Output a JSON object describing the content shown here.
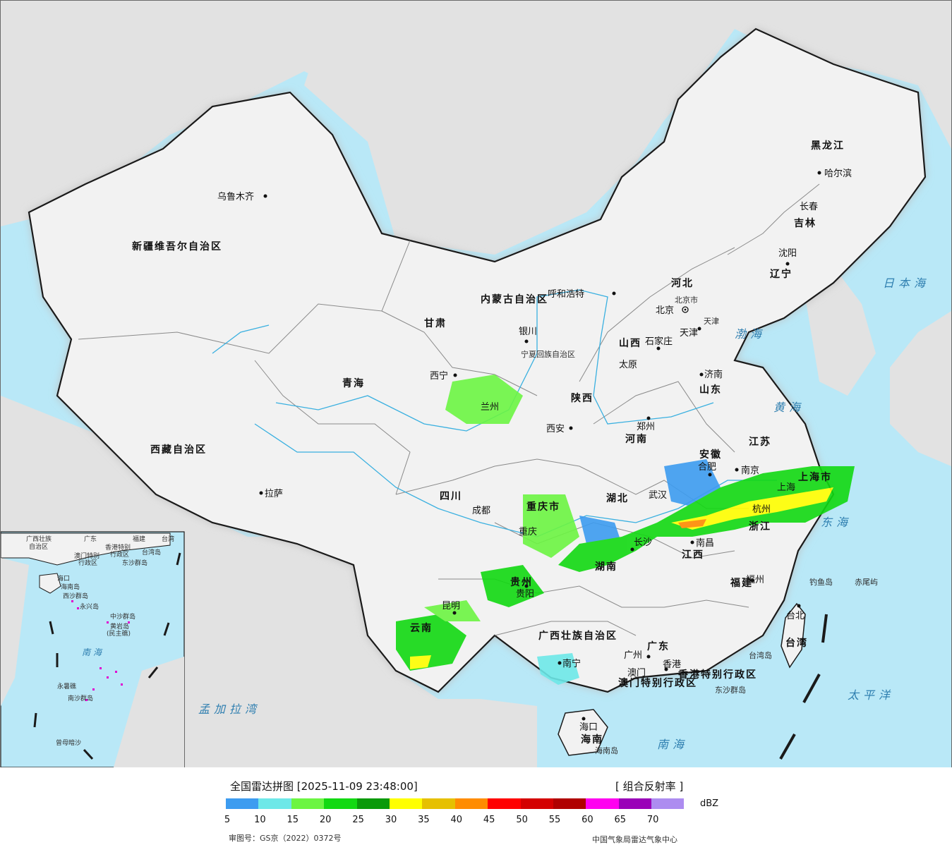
{
  "map": {
    "cities": [
      {
        "name": "乌鲁木齐"
      },
      {
        "name": "呼和浩特"
      },
      {
        "name": "北京"
      },
      {
        "name": "北京市"
      },
      {
        "name": "天津"
      },
      {
        "name": "石家庄"
      },
      {
        "name": "太原"
      },
      {
        "name": "银川"
      },
      {
        "name": "西宁"
      },
      {
        "name": "兰州"
      },
      {
        "name": "西安"
      },
      {
        "name": "郑州"
      },
      {
        "name": "济南"
      },
      {
        "name": "哈尔滨"
      },
      {
        "name": "长春"
      },
      {
        "name": "沈阳"
      },
      {
        "name": "合肥"
      },
      {
        "name": "南京"
      },
      {
        "name": "上海"
      },
      {
        "name": "杭州"
      },
      {
        "name": "武汉"
      },
      {
        "name": "南昌"
      },
      {
        "name": "长沙"
      },
      {
        "name": "福州"
      },
      {
        "name": "台北"
      },
      {
        "name": "成都"
      },
      {
        "name": "重庆"
      },
      {
        "name": "贵阳"
      },
      {
        "name": "昆明"
      },
      {
        "name": "南宁"
      },
      {
        "name": "广州"
      },
      {
        "name": "澳门"
      },
      {
        "name": "香港"
      },
      {
        "name": "海口"
      },
      {
        "name": "拉萨"
      }
    ],
    "provinces": [
      "新疆维吾尔自治区",
      "西藏自治区",
      "青海",
      "甘肃",
      "内蒙古自治区",
      "黑龙江",
      "吉林",
      "辽宁",
      "河北",
      "山西",
      "陕西",
      "河南",
      "山东",
      "江苏",
      "安徽",
      "上海市",
      "浙江",
      "湖北",
      "湖南",
      "江西",
      "福建",
      "台湾",
      "四川",
      "重庆市",
      "贵州",
      "云南",
      "广西壮族自治区",
      "广东",
      "香港特别行政区",
      "澳门特别行政区",
      "海南",
      "宁夏回族自治区",
      "天津"
    ],
    "seas": [
      "渤海",
      "黄海",
      "东海",
      "日本海",
      "太平洋",
      "南海",
      "孟加拉湾"
    ],
    "islands": [
      "钓鱼岛",
      "赤尾屿",
      "东沙群岛",
      "台湾岛",
      "海南岛"
    ],
    "inset": {
      "labels": [
        "广西壮族",
        "自治区",
        "广东",
        "福建",
        "台湾",
        "香港特别",
        "行政区",
        "澳门特别",
        "行政区",
        "东沙群岛",
        "台湾岛",
        "海口",
        "海南岛",
        "西沙群岛",
        "永兴岛",
        "中沙群岛",
        "黄岩岛",
        "(民主礁)",
        "南海",
        "永暑礁",
        "南沙群岛",
        "曾母暗沙"
      ]
    },
    "colors": {
      "sea": "#b9e8f7",
      "land": "#f0f0f0",
      "foreign": "#e2e2e2",
      "border": "#1a1a1a",
      "river": "#3ab0e0",
      "halo": "#c8c8c8"
    }
  },
  "legend": {
    "title": "全国雷达拼图 [2025-11-09 23:48:00]",
    "product": "[ 组合反射率 ]",
    "unit": "dBZ",
    "ticks": [
      "5",
      "10",
      "15",
      "20",
      "25",
      "30",
      "35",
      "40",
      "45",
      "50",
      "55",
      "60",
      "65",
      "70"
    ],
    "colors": [
      "#3d9cf0",
      "#6de8e8",
      "#6cf542",
      "#12d912",
      "#0a9a0a",
      "#ffff00",
      "#e6c000",
      "#ff8c00",
      "#ff0000",
      "#d40000",
      "#b00000",
      "#ff00f0",
      "#9a00b8",
      "#ad8cf0"
    ],
    "review_no": "审图号：GS京（2022）0372号",
    "center": "中国气象局雷达气象中心"
  }
}
